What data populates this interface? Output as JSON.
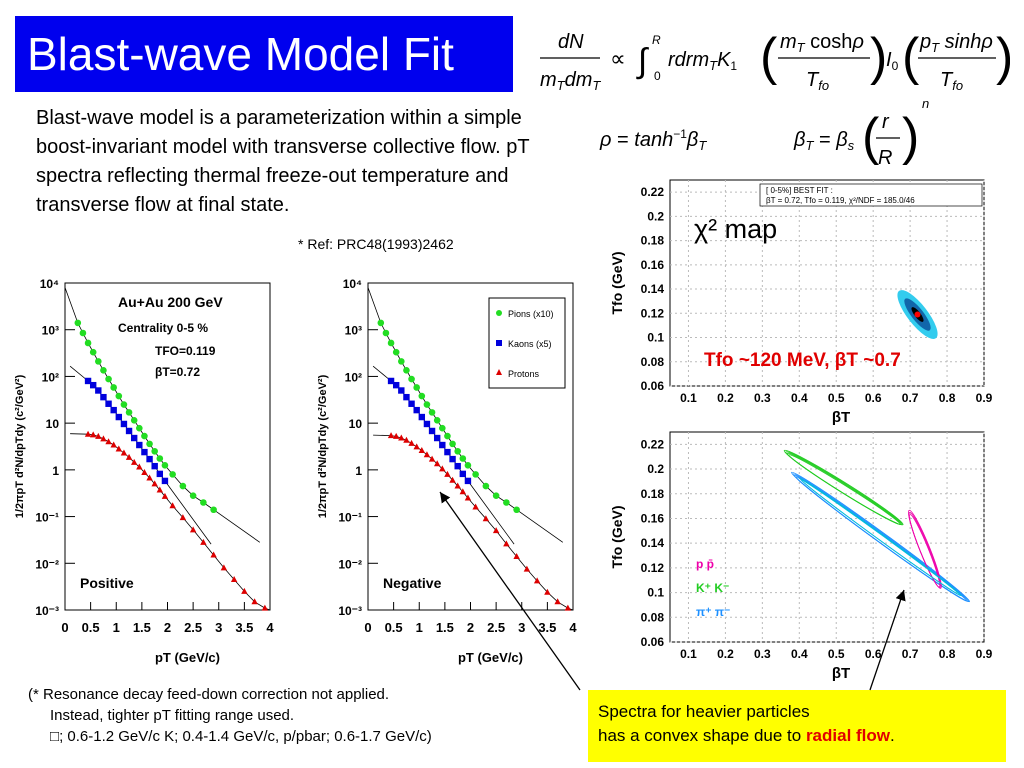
{
  "title": "Blast-wave Model Fit",
  "intro_text": "Blast-wave model is a parameterization within a simple boost-invariant model with transverse collective flow. pT spectra reflecting thermal freeze-out temperature and transverse flow at final state.",
  "ref": "* Ref: PRC48(1993)2462",
  "footnote": {
    "line1": "(* Resonance decay feed-down correction not applied.",
    "line2": "Instead, tighter pT fitting range used.",
    "line3": "; 0.6-1.2 GeV/c K; 0.4-1.4 GeV/c, p/pbar; 0.6-1.7 GeV/c)"
  },
  "callout": {
    "line1": "Spectra for heavier particles",
    "line2": "has a convex shape due to",
    "highlight": "radial flow",
    "end": "."
  },
  "chi_map": {
    "label": "χ² map",
    "result": "Tfo ~120 MeV, βT ~0.7",
    "fit_box_1": "[ 0-5%]  BEST FIT :",
    "fit_box_2": "βT = 0.72,  Tfo = 0.119,  χ²/NDF = 185.0/46"
  },
  "panel_texts": {
    "system": "Au+Au 200 GeV",
    "centrality": "Centrality 0-5 %",
    "tfo": "TFO=0.119",
    "beta": "βT=0.72",
    "positive": "Positive",
    "negative": "Negative"
  },
  "chart_data": [
    {
      "type": "scatter",
      "name": "spectra-positive",
      "xlabel": "pT (GeV/c)",
      "ylabel": "1/2πpT d²N/dpTdy (c²/GeV²)",
      "xlim": [
        0,
        4
      ],
      "ylim_log10": [
        -3,
        4
      ],
      "xticks": [
        "0",
        "0.5",
        "1",
        "1.5",
        "2",
        "2.5",
        "3",
        "3.5",
        "4"
      ],
      "yticks": [
        "10⁴",
        "10³",
        "10²",
        "10",
        "1",
        "10⁻¹",
        "10⁻²",
        "10⁻³"
      ],
      "series": [
        {
          "name": "Pions (x10)",
          "color": "#22dd22",
          "marker": "circle",
          "x": [
            0.25,
            0.35,
            0.45,
            0.55,
            0.65,
            0.75,
            0.85,
            0.95,
            1.05,
            1.15,
            1.25,
            1.35,
            1.45,
            1.55,
            1.65,
            1.75,
            1.85,
            1.95,
            2.1,
            2.3,
            2.5,
            2.7,
            2.9
          ],
          "y": [
            1400,
            850,
            520,
            330,
            210,
            135,
            88,
            58,
            38,
            25,
            17,
            11.5,
            7.8,
            5.3,
            3.6,
            2.5,
            1.75,
            1.25,
            0.8,
            0.45,
            0.28,
            0.2,
            0.14
          ]
        },
        {
          "name": "Kaons (x5)",
          "color": "#0000dd",
          "marker": "square",
          "x": [
            0.45,
            0.55,
            0.65,
            0.75,
            0.85,
            0.95,
            1.05,
            1.15,
            1.25,
            1.35,
            1.45,
            1.55,
            1.65,
            1.75,
            1.85,
            1.95
          ],
          "y": [
            80,
            65,
            50,
            36,
            26,
            19,
            13.5,
            9.6,
            6.8,
            4.8,
            3.4,
            2.4,
            1.7,
            1.2,
            0.82,
            0.58
          ]
        },
        {
          "name": "Protons",
          "color": "#dd0000",
          "marker": "triangle",
          "x": [
            0.45,
            0.55,
            0.65,
            0.75,
            0.85,
            0.95,
            1.05,
            1.15,
            1.25,
            1.35,
            1.45,
            1.55,
            1.65,
            1.75,
            1.85,
            1.95,
            2.1,
            2.3,
            2.5,
            2.7,
            2.9,
            3.1,
            3.3,
            3.5,
            3.7,
            3.9
          ],
          "y": [
            5.8,
            5.6,
            5.2,
            4.6,
            4.0,
            3.4,
            2.8,
            2.3,
            1.85,
            1.45,
            1.15,
            0.88,
            0.67,
            0.5,
            0.37,
            0.27,
            0.17,
            0.095,
            0.052,
            0.028,
            0.015,
            0.008,
            0.0045,
            0.0025,
            0.0015,
            0.0011
          ]
        }
      ]
    },
    {
      "type": "scatter",
      "name": "spectra-negative",
      "xlabel": "pT (GeV/c)",
      "ylabel": "1/2πpT d²N/dpTdy (c²/GeV²)",
      "xlim": [
        0,
        4
      ],
      "ylim_log10": [
        -3,
        4
      ],
      "xticks": [
        "0",
        "0.5",
        "1",
        "1.5",
        "2",
        "2.5",
        "3",
        "3.5",
        "4"
      ],
      "yticks": [
        "10⁴",
        "10³",
        "10²",
        "10",
        "1",
        "10⁻¹",
        "10⁻²",
        "10⁻³"
      ],
      "legend": [
        "Pions (x10)",
        "Kaons (x5)",
        "Protons"
      ],
      "series": [
        {
          "name": "Pions (x10)",
          "color": "#22dd22",
          "marker": "circle",
          "x": [
            0.25,
            0.35,
            0.45,
            0.55,
            0.65,
            0.75,
            0.85,
            0.95,
            1.05,
            1.15,
            1.25,
            1.35,
            1.45,
            1.55,
            1.65,
            1.75,
            1.85,
            1.95,
            2.1,
            2.3,
            2.5,
            2.7,
            2.9
          ],
          "y": [
            1400,
            850,
            520,
            330,
            210,
            135,
            88,
            58,
            38,
            25,
            17,
            11.5,
            7.8,
            5.3,
            3.6,
            2.5,
            1.75,
            1.25,
            0.8,
            0.45,
            0.28,
            0.2,
            0.14
          ]
        },
        {
          "name": "Kaons (x5)",
          "color": "#0000dd",
          "marker": "square",
          "x": [
            0.45,
            0.55,
            0.65,
            0.75,
            0.85,
            0.95,
            1.05,
            1.15,
            1.25,
            1.35,
            1.45,
            1.55,
            1.65,
            1.75,
            1.85,
            1.95
          ],
          "y": [
            80,
            65,
            50,
            36,
            26,
            19,
            13.5,
            9.6,
            6.8,
            4.8,
            3.4,
            2.4,
            1.7,
            1.2,
            0.82,
            0.58
          ]
        },
        {
          "name": "Protons",
          "color": "#dd0000",
          "marker": "triangle",
          "x": [
            0.45,
            0.55,
            0.65,
            0.75,
            0.85,
            0.95,
            1.05,
            1.15,
            1.25,
            1.35,
            1.45,
            1.55,
            1.65,
            1.75,
            1.85,
            1.95,
            2.1,
            2.3,
            2.5,
            2.7,
            2.9,
            3.1,
            3.3,
            3.5,
            3.7,
            3.9
          ],
          "y": [
            5.4,
            5.2,
            4.8,
            4.3,
            3.7,
            3.1,
            2.6,
            2.1,
            1.7,
            1.35,
            1.05,
            0.8,
            0.6,
            0.45,
            0.34,
            0.25,
            0.16,
            0.09,
            0.05,
            0.026,
            0.014,
            0.0075,
            0.0042,
            0.0024,
            0.0015,
            0.0011
          ]
        }
      ]
    },
    {
      "type": "heatmap",
      "name": "chi2-map",
      "xlabel": "βT",
      "ylabel": "Tfo (GeV)",
      "xlim": [
        0.05,
        0.9
      ],
      "ylim": [
        0.06,
        0.23
      ],
      "xticks": [
        0.1,
        0.2,
        0.3,
        0.4,
        0.5,
        0.6,
        0.7,
        0.8,
        0.9
      ],
      "yticks": [
        0.06,
        0.08,
        0.1,
        0.12,
        0.14,
        0.16,
        0.18,
        0.2,
        0.22
      ],
      "best_fit": {
        "x": 0.72,
        "y": 0.119
      }
    },
    {
      "type": "line",
      "name": "contours",
      "xlabel": "βT",
      "ylabel": "Tfo (GeV)",
      "xlim": [
        0.05,
        0.9
      ],
      "ylim": [
        0.06,
        0.23
      ],
      "xticks": [
        0.1,
        0.2,
        0.3,
        0.4,
        0.5,
        0.6,
        0.7,
        0.8,
        0.9
      ],
      "yticks": [
        0.06,
        0.08,
        0.1,
        0.12,
        0.14,
        0.16,
        0.18,
        0.2,
        0.22
      ],
      "legend": [
        {
          "label": "p  p̄",
          "color": "#ee00aa"
        },
        {
          "label": "K⁺ K⁻",
          "color": "#22cc22"
        },
        {
          "label": "π⁺ π⁻",
          "color": "#1e90ff"
        }
      ]
    }
  ]
}
